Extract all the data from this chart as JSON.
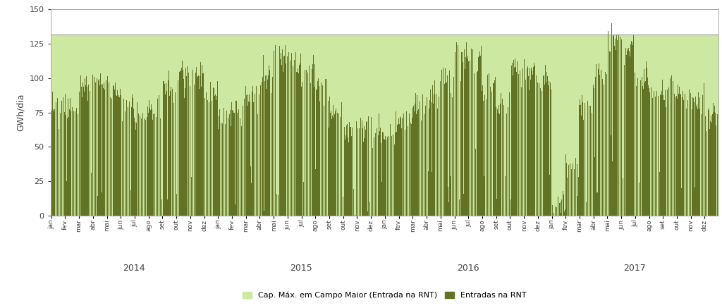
{
  "ylabel": "GWh/dia",
  "ylim": [
    0,
    150
  ],
  "yticks": [
    0,
    25,
    50,
    75,
    100,
    125,
    150
  ],
  "capacity_value": 131.5,
  "capacity_color": "#cde8a0",
  "series_color": "#627325",
  "background_color": "#ffffff",
  "legend_cap": "Cap. Máx. em Campo Maior (Entrada na RNT)",
  "legend_ent": "Entradas na RNT",
  "months_pt": [
    "jan",
    "fev",
    "mar",
    "abr",
    "mai",
    "jun",
    "jul",
    "ago",
    "set",
    "out",
    "nov",
    "dez"
  ],
  "years": [
    "2014",
    "2015",
    "2016",
    "2017"
  ],
  "grid_color": "#d8d8d8",
  "spine_color": "#aaaaaa",
  "monthly_profiles": {
    "2014": [
      80,
      78,
      92,
      100,
      95,
      80,
      70,
      78,
      92,
      102,
      100,
      88
    ],
    "2015": [
      72,
      78,
      88,
      100,
      118,
      115,
      105,
      90,
      72,
      62,
      62,
      62
    ],
    "2016": [
      62,
      68,
      78,
      88,
      100,
      115,
      115,
      95,
      78,
      108,
      108,
      100
    ],
    "2017": [
      8,
      35,
      78,
      100,
      128,
      122,
      100,
      90,
      88,
      88,
      82,
      72
    ]
  },
  "dip_profile": {
    "2014": [
      0.08,
      0.07,
      0.06,
      0.06,
      0.07,
      0.08,
      0.08,
      0.07,
      0.06,
      0.05,
      0.06,
      0.06
    ],
    "2015": [
      0.07,
      0.08,
      0.07,
      0.07,
      0.07,
      0.07,
      0.07,
      0.08,
      0.09,
      0.09,
      0.09,
      0.08
    ],
    "2016": [
      0.09,
      0.08,
      0.07,
      0.07,
      0.07,
      0.07,
      0.07,
      0.08,
      0.09,
      0.06,
      0.06,
      0.07
    ],
    "2017": [
      0.15,
      0.1,
      0.07,
      0.07,
      0.06,
      0.06,
      0.07,
      0.07,
      0.07,
      0.07,
      0.07,
      0.08
    ]
  }
}
